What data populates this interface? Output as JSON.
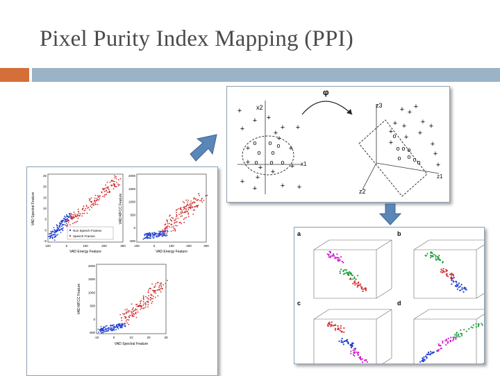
{
  "slide": {
    "title": "Pixel Purity Index Mapping (PPI)"
  },
  "colors": {
    "orange_bar": "#d46f3a",
    "blue_bar": "#9bb3c6",
    "arrow": "#5b86b8"
  },
  "left_panel": {
    "plots": [
      {
        "ylabel": "VAD Spectral Feature",
        "xlabel": "VAD Energy Feature",
        "yticks": [
          "25",
          "20",
          "15",
          "10",
          "5",
          "0",
          "-5"
        ],
        "xticks": [
          "100",
          "0",
          "100",
          "200",
          "300"
        ],
        "legend": [
          "Non Speech Frames",
          "Speech Frames"
        ]
      },
      {
        "ylabel": "VAD MFCC Feature",
        "xlabel": "VAD Energy Feature",
        "yticks": [
          "2000",
          "1500",
          "1000",
          "500",
          "0",
          "-500"
        ],
        "xticks": [
          "100",
          "0",
          "100",
          "200",
          "300"
        ]
      },
      {
        "ylabel": "VAD MFCC Feature",
        "xlabel": "VAD Spectral Feature",
        "yticks": [
          "2000",
          "1500",
          "1000",
          "500",
          "0",
          "-500"
        ],
        "xticks": [
          "-10",
          "0",
          "10",
          "20",
          "30"
        ]
      }
    ]
  },
  "top_panel": {
    "phi": "φ",
    "left_axes": {
      "y": "x2",
      "x": "x1"
    },
    "right_axes": {
      "a": "z3",
      "b": "z1",
      "c": "z2"
    }
  },
  "bottom_panel": {
    "labels": [
      "a",
      "b",
      "c",
      "d"
    ]
  }
}
